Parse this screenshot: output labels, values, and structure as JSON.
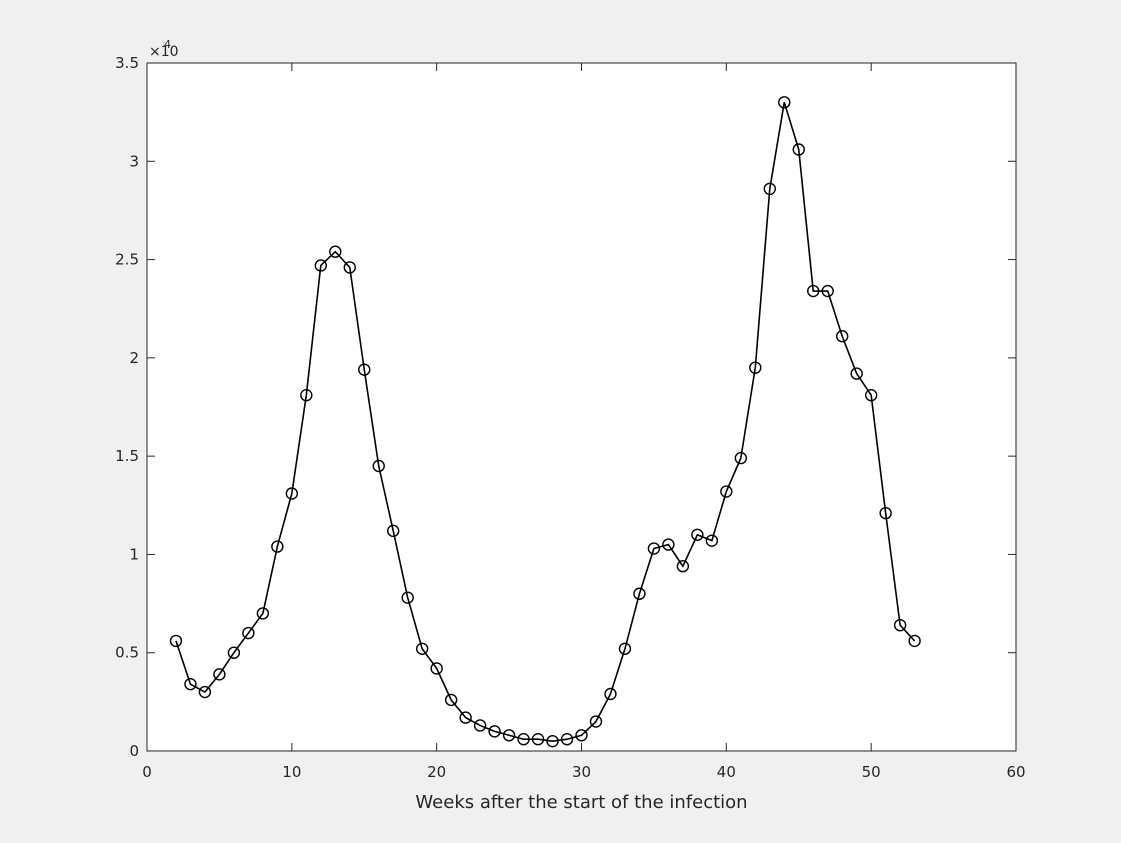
{
  "chart_data": {
    "type": "line",
    "title": "",
    "xlabel": "Weeks after the start of the infection",
    "ylabel": "",
    "y_exponent_label": "×10",
    "y_exponent_power": "4",
    "xlim": [
      0,
      60
    ],
    "ylim": [
      0,
      35000
    ],
    "xticks": [
      0,
      10,
      20,
      30,
      40,
      50,
      60
    ],
    "xtick_labels": [
      "0",
      "10",
      "20",
      "30",
      "40",
      "50",
      "60"
    ],
    "yticks": [
      0,
      5000,
      10000,
      15000,
      20000,
      25000,
      30000,
      35000
    ],
    "ytick_labels": [
      "0",
      "0.5",
      "1",
      "1.5",
      "2",
      "2.5",
      "3",
      "3.5"
    ],
    "grid": false,
    "marker": "circle",
    "line_color": "#000000",
    "series": [
      {
        "x": [
          2,
          3,
          4,
          5,
          6,
          7,
          8,
          9,
          10,
          11,
          12,
          13,
          14,
          15,
          16,
          17,
          18,
          19,
          20,
          21,
          22,
          23,
          24,
          25,
          26,
          27,
          28,
          29,
          30,
          31,
          32,
          33,
          34,
          35,
          36,
          37,
          38,
          39,
          40,
          41,
          42,
          43,
          44,
          45,
          46,
          47,
          48,
          49,
          50,
          51,
          52,
          53
        ],
        "values": [
          5600,
          3400,
          3000,
          3900,
          5000,
          6000,
          7000,
          10400,
          13100,
          18100,
          24700,
          25400,
          24600,
          19400,
          14500,
          11200,
          7800,
          5200,
          4200,
          2600,
          1700,
          1300,
          1000,
          800,
          600,
          600,
          500,
          600,
          800,
          1500,
          2900,
          5200,
          8000,
          10300,
          10500,
          9400,
          11000,
          10700,
          13200,
          14900,
          19500,
          28600,
          33000,
          30600,
          23400,
          23400,
          21100,
          19200,
          18100,
          12100,
          6400,
          5600
        ]
      }
    ]
  }
}
